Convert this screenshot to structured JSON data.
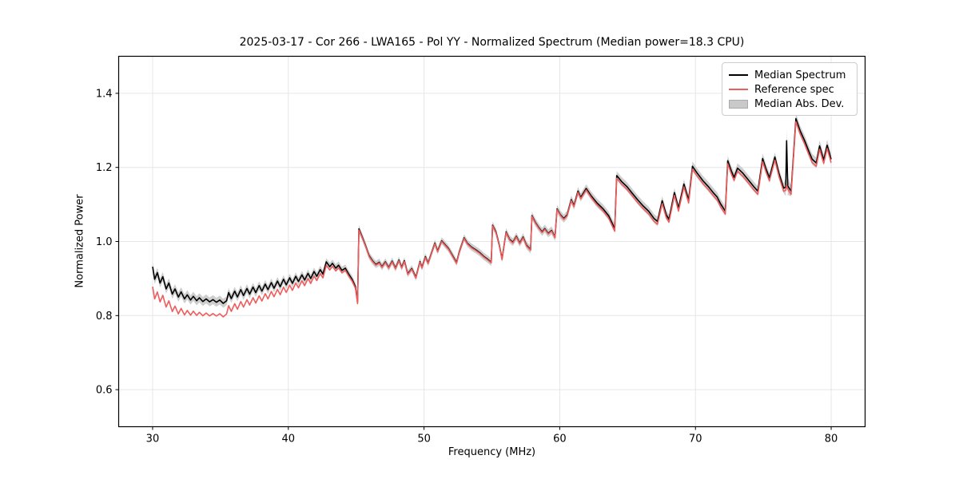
{
  "figure": {
    "title": "2025-03-17 - Cor 266 - LWA165 - Pol YY - Normalized Spectrum (Median power=18.3 CPU)",
    "xlabel": "Frequency (MHz)",
    "ylabel": "Normalized Power",
    "background": "#ffffff",
    "grid_color": "#e6e6e6",
    "spine_color": "#000000"
  },
  "legend": {
    "items": [
      {
        "label": "Median Spectrum",
        "type": "line",
        "color": "#000000"
      },
      {
        "label": "Reference spec",
        "type": "line",
        "color": "#ee5c5c"
      },
      {
        "label": "Median Abs. Dev.",
        "type": "patch",
        "color": "#c9c9c9"
      }
    ]
  },
  "chart_data": {
    "type": "line",
    "title": "2025-03-17 - Cor 266 - LWA165 - Pol YY - Normalized Spectrum (Median power=18.3 CPU)",
    "xlabel": "Frequency (MHz)",
    "ylabel": "Normalized Power",
    "xlim": [
      27.5,
      82.5
    ],
    "ylim": [
      0.5,
      1.5
    ],
    "x_ticks": [
      30,
      40,
      50,
      60,
      70,
      80
    ],
    "y_ticks": [
      0.6,
      0.8,
      1.0,
      1.2,
      1.4
    ],
    "grid": true,
    "legend_position": "upper right",
    "series": [
      {
        "name": "Median Spectrum",
        "color": "#000000",
        "points": [
          [
            30.0,
            0.932
          ],
          [
            30.15,
            0.898
          ],
          [
            30.35,
            0.916
          ],
          [
            30.55,
            0.888
          ],
          [
            30.75,
            0.905
          ],
          [
            31.0,
            0.872
          ],
          [
            31.2,
            0.888
          ],
          [
            31.45,
            0.858
          ],
          [
            31.65,
            0.872
          ],
          [
            31.9,
            0.85
          ],
          [
            32.1,
            0.864
          ],
          [
            32.35,
            0.845
          ],
          [
            32.55,
            0.856
          ],
          [
            32.8,
            0.842
          ],
          [
            33.0,
            0.852
          ],
          [
            33.25,
            0.84
          ],
          [
            33.45,
            0.848
          ],
          [
            33.7,
            0.838
          ],
          [
            33.95,
            0.845
          ],
          [
            34.2,
            0.837
          ],
          [
            34.45,
            0.843
          ],
          [
            34.7,
            0.836
          ],
          [
            34.95,
            0.842
          ],
          [
            35.2,
            0.833
          ],
          [
            35.45,
            0.84
          ],
          [
            35.6,
            0.862
          ],
          [
            35.8,
            0.846
          ],
          [
            36.05,
            0.866
          ],
          [
            36.25,
            0.85
          ],
          [
            36.5,
            0.87
          ],
          [
            36.7,
            0.854
          ],
          [
            36.95,
            0.873
          ],
          [
            37.15,
            0.858
          ],
          [
            37.4,
            0.877
          ],
          [
            37.6,
            0.862
          ],
          [
            37.85,
            0.881
          ],
          [
            38.05,
            0.866
          ],
          [
            38.3,
            0.885
          ],
          [
            38.5,
            0.87
          ],
          [
            38.75,
            0.889
          ],
          [
            38.95,
            0.874
          ],
          [
            39.2,
            0.893
          ],
          [
            39.4,
            0.878
          ],
          [
            39.65,
            0.898
          ],
          [
            39.85,
            0.883
          ],
          [
            40.1,
            0.902
          ],
          [
            40.3,
            0.887
          ],
          [
            40.55,
            0.906
          ],
          [
            40.75,
            0.892
          ],
          [
            41.0,
            0.91
          ],
          [
            41.2,
            0.896
          ],
          [
            41.45,
            0.914
          ],
          [
            41.65,
            0.9
          ],
          [
            41.9,
            0.919
          ],
          [
            42.1,
            0.906
          ],
          [
            42.35,
            0.924
          ],
          [
            42.55,
            0.912
          ],
          [
            42.8,
            0.945
          ],
          [
            43.05,
            0.932
          ],
          [
            43.25,
            0.941
          ],
          [
            43.5,
            0.928
          ],
          [
            43.7,
            0.936
          ],
          [
            43.95,
            0.922
          ],
          [
            44.2,
            0.928
          ],
          [
            44.45,
            0.912
          ],
          [
            44.7,
            0.898
          ],
          [
            44.95,
            0.878
          ],
          [
            45.1,
            0.836
          ],
          [
            45.2,
            1.034
          ],
          [
            45.45,
            1.012
          ],
          [
            45.7,
            0.988
          ],
          [
            45.95,
            0.962
          ],
          [
            46.2,
            0.948
          ],
          [
            46.45,
            0.938
          ],
          [
            46.7,
            0.944
          ],
          [
            46.9,
            0.932
          ],
          [
            47.15,
            0.945
          ],
          [
            47.4,
            0.93
          ],
          [
            47.65,
            0.947
          ],
          [
            47.9,
            0.928
          ],
          [
            48.15,
            0.95
          ],
          [
            48.35,
            0.93
          ],
          [
            48.55,
            0.948
          ],
          [
            48.8,
            0.913
          ],
          [
            49.1,
            0.927
          ],
          [
            49.4,
            0.903
          ],
          [
            49.7,
            0.946
          ],
          [
            49.85,
            0.93
          ],
          [
            50.1,
            0.959
          ],
          [
            50.3,
            0.942
          ],
          [
            50.8,
            0.996
          ],
          [
            51.0,
            0.974
          ],
          [
            51.3,
            1.002
          ],
          [
            51.8,
            0.981
          ],
          [
            52.1,
            0.962
          ],
          [
            52.4,
            0.943
          ],
          [
            52.6,
            0.972
          ],
          [
            52.95,
            1.01
          ],
          [
            53.2,
            0.995
          ],
          [
            53.5,
            0.985
          ],
          [
            53.8,
            0.978
          ],
          [
            54.1,
            0.97
          ],
          [
            54.4,
            0.96
          ],
          [
            54.7,
            0.952
          ],
          [
            54.95,
            0.944
          ],
          [
            55.05,
            1.044
          ],
          [
            55.3,
            1.026
          ],
          [
            55.55,
            0.99
          ],
          [
            55.75,
            0.953
          ],
          [
            56.05,
            1.026
          ],
          [
            56.3,
            1.006
          ],
          [
            56.55,
            0.998
          ],
          [
            56.8,
            1.014
          ],
          [
            57.05,
            0.996
          ],
          [
            57.3,
            1.012
          ],
          [
            57.55,
            0.99
          ],
          [
            57.85,
            0.978
          ],
          [
            57.95,
            1.07
          ],
          [
            58.2,
            1.052
          ],
          [
            58.45,
            1.038
          ],
          [
            58.7,
            1.026
          ],
          [
            58.9,
            1.035
          ],
          [
            59.15,
            1.022
          ],
          [
            59.4,
            1.03
          ],
          [
            59.65,
            1.012
          ],
          [
            59.8,
            1.088
          ],
          [
            60.05,
            1.072
          ],
          [
            60.3,
            1.062
          ],
          [
            60.55,
            1.072
          ],
          [
            60.85,
            1.113
          ],
          [
            61.05,
            1.097
          ],
          [
            61.35,
            1.136
          ],
          [
            61.55,
            1.119
          ],
          [
            61.95,
            1.143
          ],
          [
            62.3,
            1.124
          ],
          [
            62.75,
            1.104
          ],
          [
            63.2,
            1.088
          ],
          [
            63.6,
            1.07
          ],
          [
            64.05,
            1.035
          ],
          [
            64.2,
            1.178
          ],
          [
            64.55,
            1.162
          ],
          [
            64.95,
            1.148
          ],
          [
            65.35,
            1.13
          ],
          [
            65.75,
            1.112
          ],
          [
            66.15,
            1.096
          ],
          [
            66.55,
            1.082
          ],
          [
            66.95,
            1.062
          ],
          [
            67.2,
            1.054
          ],
          [
            67.55,
            1.11
          ],
          [
            67.85,
            1.072
          ],
          [
            68.05,
            1.06
          ],
          [
            68.45,
            1.132
          ],
          [
            68.75,
            1.09
          ],
          [
            69.15,
            1.155
          ],
          [
            69.5,
            1.112
          ],
          [
            69.78,
            1.203
          ],
          [
            70.1,
            1.186
          ],
          [
            70.55,
            1.164
          ],
          [
            70.95,
            1.148
          ],
          [
            71.35,
            1.13
          ],
          [
            71.6,
            1.12
          ],
          [
            71.85,
            1.102
          ],
          [
            72.2,
            1.082
          ],
          [
            72.38,
            1.218
          ],
          [
            72.65,
            1.19
          ],
          [
            72.85,
            1.173
          ],
          [
            73.1,
            1.198
          ],
          [
            73.5,
            1.184
          ],
          [
            73.9,
            1.166
          ],
          [
            74.3,
            1.148
          ],
          [
            74.6,
            1.136
          ],
          [
            74.95,
            1.224
          ],
          [
            75.2,
            1.196
          ],
          [
            75.45,
            1.172
          ],
          [
            75.85,
            1.228
          ],
          [
            76.15,
            1.184
          ],
          [
            76.5,
            1.144
          ],
          [
            76.65,
            1.147
          ],
          [
            76.72,
            1.272
          ],
          [
            76.8,
            1.15
          ],
          [
            77.05,
            1.136
          ],
          [
            77.4,
            1.332
          ],
          [
            77.7,
            1.3
          ],
          [
            78.05,
            1.272
          ],
          [
            78.35,
            1.244
          ],
          [
            78.6,
            1.222
          ],
          [
            78.9,
            1.212
          ],
          [
            79.15,
            1.258
          ],
          [
            79.45,
            1.22
          ],
          [
            79.7,
            1.26
          ],
          [
            80.0,
            1.222
          ]
        ]
      },
      {
        "name": "Reference spec",
        "color": "#ee5c5c",
        "offset_below_median": [
          [
            30,
            0.054
          ],
          [
            31,
            0.049
          ],
          [
            32,
            0.045
          ],
          [
            33,
            0.04
          ],
          [
            34,
            0.038
          ],
          [
            35,
            0.037
          ],
          [
            36,
            0.034
          ],
          [
            37,
            0.03
          ],
          [
            38,
            0.027
          ],
          [
            39,
            0.023
          ],
          [
            40,
            0.02
          ],
          [
            41,
            0.016
          ],
          [
            42,
            0.012
          ],
          [
            43,
            0.009
          ],
          [
            44,
            0.006
          ],
          [
            45,
            0.004
          ],
          [
            45.5,
            0.002
          ],
          [
            60,
            0.002
          ],
          [
            62,
            0.004
          ],
          [
            64,
            0.007
          ],
          [
            80,
            0.009
          ]
        ],
        "exceptions": [
          [
            76.72,
            1.152
          ]
        ]
      },
      {
        "name": "Median Abs. Dev.",
        "color": "#c9c9c9",
        "band_halfwidth": [
          [
            30,
            0.013
          ],
          [
            35,
            0.012
          ],
          [
            40,
            0.011
          ],
          [
            45,
            0.01
          ],
          [
            50,
            0.009
          ],
          [
            55,
            0.01
          ],
          [
            60,
            0.011
          ],
          [
            65,
            0.012
          ],
          [
            70,
            0.013
          ],
          [
            76.5,
            0.013
          ],
          [
            76.72,
            0.03
          ],
          [
            76.95,
            0.014
          ],
          [
            80,
            0.015
          ]
        ]
      }
    ]
  }
}
